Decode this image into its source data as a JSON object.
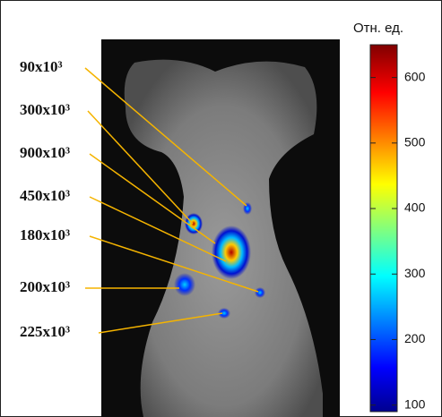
{
  "labels": [
    "90x10³",
    "300x10³",
    "900x10³",
    "450x10³",
    "180x10³",
    "200x10³",
    "225x10³"
  ],
  "colorbar": {
    "title": "Отн. ед.",
    "lim": [
      90,
      650
    ],
    "ticks": [
      100,
      200,
      300,
      400,
      500,
      600
    ]
  }
}
